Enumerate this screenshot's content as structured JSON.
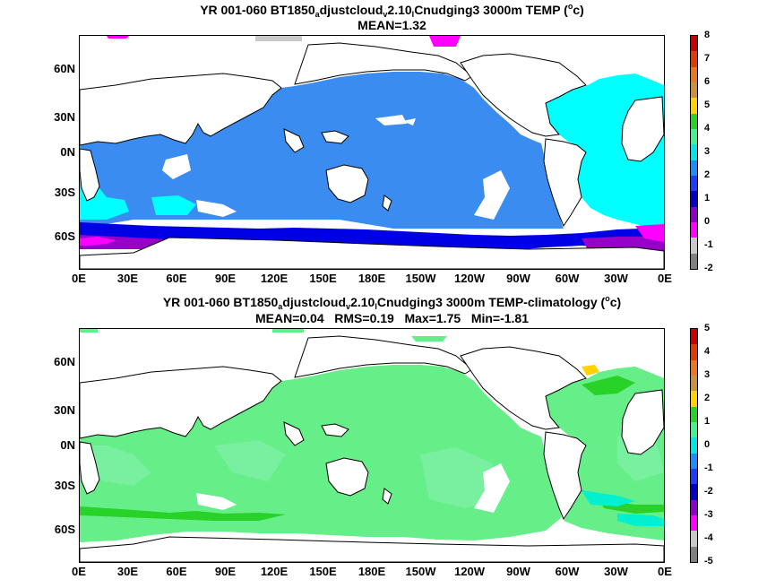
{
  "panel1": {
    "title_pre": "YR 001-060 BT1850",
    "title_sub1": "a",
    "title_mid1": "djustcloud",
    "title_sub2": "v",
    "title_mid2": "2.10",
    "title_sub3": "l",
    "title_mid3": "Cnudging3 3000m TEMP (",
    "title_sup": "o",
    "title_end": "c)",
    "stats": "MEAN=1.32",
    "colorbar_labels": [
      "8",
      "7",
      "6",
      "5",
      "4",
      "3",
      "2",
      "1",
      "0",
      "-1",
      "-2"
    ],
    "colorbar_colors": [
      "#c80000",
      "#e03c00",
      "#e87820",
      "#c89040",
      "#ffd200",
      "#28d228",
      "#46f08c",
      "#00e6e6",
      "#1e8cff",
      "#1e3cff",
      "#0000c8",
      "#8c00c8",
      "#ff00ff",
      "#c8c8c8",
      "#808080"
    ]
  },
  "panel2": {
    "title_pre": "YR 001-060 BT1850",
    "title_sub1": "a",
    "title_mid1": "djustcloud",
    "title_sub2": "v",
    "title_mid2": "2.10",
    "title_sub3": "l",
    "title_mid3": "Cnudging3 3000m TEMP-climatology (",
    "title_sup": "o",
    "title_end": "c)",
    "stats": "MEAN=0.04   RMS=0.19   Max=1.75   Min=-1.81",
    "colorbar_labels": [
      "5",
      "4",
      "3",
      "2",
      "1",
      "0",
      "-1",
      "-2",
      "-3",
      "-4",
      "-5"
    ],
    "colorbar_colors": [
      "#c80000",
      "#e03c00",
      "#e87820",
      "#c89040",
      "#ffd200",
      "#28d228",
      "#46f08c",
      "#00e6e6",
      "#1e8cff",
      "#1e3cff",
      "#0000c8",
      "#8c00c8",
      "#ff00ff",
      "#c8c8c8",
      "#808080"
    ]
  },
  "axes": {
    "lat_labels": [
      "60N",
      "30N",
      "0N",
      "30S",
      "60S"
    ],
    "lon_labels": [
      "0E",
      "30E",
      "60E",
      "90E",
      "120E",
      "150E",
      "180E",
      "150W",
      "120W",
      "90W",
      "60W",
      "30W",
      "0E"
    ]
  },
  "colors": {
    "land": "#ffffff",
    "coast": "#000000",
    "p1_ocean": "#3a8cf0",
    "p1_atlantic": "#00ffff",
    "p1_south": "#0000e6",
    "p1_deep": "#9600c8",
    "p1_magenta": "#ff00ff",
    "p2_ocean": "#66ee88",
    "p2_light": "#78f0a0",
    "p2_green": "#28d228",
    "p2_cyan": "#00f0d0"
  }
}
